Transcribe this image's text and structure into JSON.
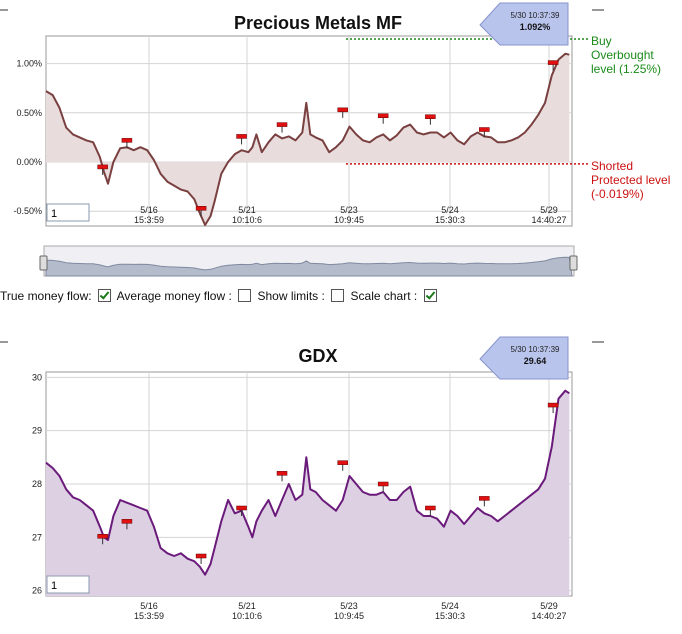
{
  "chart_data": [
    {
      "type": "line",
      "title": "Precious Metals MF",
      "yunit": "percent",
      "ylim": [
        -0.65,
        1.28
      ],
      "yticks": [
        "1.00%",
        "0.50%",
        "0.00%",
        "-0.50%"
      ],
      "ytick_values": [
        1.0,
        0.5,
        0.0,
        -0.5
      ],
      "xticks": [
        {
          "date": "5/16",
          "time": "15:3:59"
        },
        {
          "date": "5/21",
          "time": "10:10:6"
        },
        {
          "date": "5/23",
          "time": "10:9:45"
        },
        {
          "date": "5/24",
          "time": "15:30:3"
        },
        {
          "date": "5/29",
          "time": "14:40:27"
        }
      ],
      "series": [
        {
          "color": "#7a4040",
          "fill": "#e8dcdc",
          "points": [
            [
              0,
              0.72
            ],
            [
              0.5,
              0.68
            ],
            [
              1,
              0.55
            ],
            [
              1.5,
              0.35
            ],
            [
              2,
              0.28
            ],
            [
              2.5,
              0.25
            ],
            [
              3,
              0.22
            ],
            [
              3.5,
              0.2
            ],
            [
              4,
              0.05
            ],
            [
              4.3,
              -0.1
            ],
            [
              4.6,
              -0.22
            ],
            [
              5,
              0.0
            ],
            [
              5.5,
              0.14
            ],
            [
              6,
              0.15
            ],
            [
              6.5,
              0.12
            ],
            [
              7,
              0.15
            ],
            [
              7.5,
              0.12
            ],
            [
              8,
              0.02
            ],
            [
              8.5,
              -0.12
            ],
            [
              9,
              -0.2
            ],
            [
              9.5,
              -0.24
            ],
            [
              10,
              -0.28
            ],
            [
              10.5,
              -0.3
            ],
            [
              11,
              -0.38
            ],
            [
              11.4,
              -0.52
            ],
            [
              11.8,
              -0.64
            ],
            [
              12.2,
              -0.55
            ],
            [
              12.5,
              -0.4
            ],
            [
              13,
              -0.12
            ],
            [
              13.5,
              0.0
            ],
            [
              14,
              0.08
            ],
            [
              14.5,
              0.12
            ],
            [
              15,
              0.1
            ],
            [
              15.3,
              0.15
            ],
            [
              15.6,
              0.28
            ],
            [
              16,
              0.1
            ],
            [
              16.5,
              0.2
            ],
            [
              17,
              0.28
            ],
            [
              17.5,
              0.24
            ],
            [
              18,
              0.26
            ],
            [
              18.5,
              0.22
            ],
            [
              19,
              0.3
            ],
            [
              19.3,
              0.6
            ],
            [
              19.6,
              0.28
            ],
            [
              20,
              0.25
            ],
            [
              20.5,
              0.22
            ],
            [
              21,
              0.1
            ],
            [
              21.5,
              0.15
            ],
            [
              22,
              0.22
            ],
            [
              22.5,
              0.36
            ],
            [
              23,
              0.28
            ],
            [
              23.5,
              0.22
            ],
            [
              24,
              0.2
            ],
            [
              24.5,
              0.25
            ],
            [
              25,
              0.28
            ],
            [
              25.5,
              0.22
            ],
            [
              26,
              0.27
            ],
            [
              26.5,
              0.35
            ],
            [
              27,
              0.38
            ],
            [
              27.5,
              0.3
            ],
            [
              28,
              0.28
            ],
            [
              28.5,
              0.3
            ],
            [
              29,
              0.3
            ],
            [
              29.5,
              0.25
            ],
            [
              30,
              0.3
            ],
            [
              30.5,
              0.22
            ],
            [
              31,
              0.18
            ],
            [
              31.5,
              0.26
            ],
            [
              32,
              0.3
            ],
            [
              32.5,
              0.26
            ],
            [
              33,
              0.25
            ],
            [
              33.5,
              0.2
            ],
            [
              34,
              0.2
            ],
            [
              34.5,
              0.22
            ],
            [
              35,
              0.25
            ],
            [
              35.5,
              0.3
            ],
            [
              36,
              0.38
            ],
            [
              36.5,
              0.48
            ],
            [
              37,
              0.6
            ],
            [
              37.5,
              0.88
            ],
            [
              38,
              1.04
            ],
            [
              38.5,
              1.1
            ],
            [
              38.8,
              1.09
            ]
          ]
        }
      ],
      "markers": [
        [
          4.2,
          -0.05
        ],
        [
          6,
          0.22
        ],
        [
          11.5,
          -0.47
        ],
        [
          14.5,
          0.26
        ],
        [
          17.5,
          0.38
        ],
        [
          22,
          0.53
        ],
        [
          25,
          0.47
        ],
        [
          28.5,
          0.46
        ],
        [
          32.5,
          0.33
        ],
        [
          37.6,
          1.01
        ]
      ],
      "current": {
        "date_time": "5/30 10:37:39",
        "value": "1.092%"
      },
      "levels": [
        {
          "label": "Buy Overbought level (1.25%)",
          "value": 1.25,
          "color": "#1a8a1a"
        },
        {
          "label": "Shorted Protected level (-0.019%)",
          "value": -0.019,
          "color": "#cc1111"
        }
      ],
      "input_value": "1"
    },
    {
      "type": "line",
      "title": "GDX",
      "ylim": [
        25.9,
        30.1
      ],
      "yticks": [
        "30",
        "29",
        "28",
        "27",
        "26"
      ],
      "ytick_values": [
        30,
        29,
        28,
        27,
        26
      ],
      "xticks": [
        {
          "date": "5/16",
          "time": "15:3:59"
        },
        {
          "date": "5/21",
          "time": "10:10:6"
        },
        {
          "date": "5/23",
          "time": "10:9:45"
        },
        {
          "date": "5/24",
          "time": "15:30:3"
        },
        {
          "date": "5/29",
          "time": "14:40:27"
        }
      ],
      "series": [
        {
          "color": "#6a1a7a",
          "fill": "#ddd0e3",
          "points": [
            [
              0,
              28.4
            ],
            [
              0.5,
              28.3
            ],
            [
              1,
              28.15
            ],
            [
              1.5,
              27.9
            ],
            [
              2,
              27.75
            ],
            [
              2.5,
              27.7
            ],
            [
              3,
              27.6
            ],
            [
              3.5,
              27.5
            ],
            [
              4,
              27.2
            ],
            [
              4.3,
              27.0
            ],
            [
              4.6,
              26.95
            ],
            [
              5,
              27.4
            ],
            [
              5.5,
              27.7
            ],
            [
              6,
              27.65
            ],
            [
              6.5,
              27.6
            ],
            [
              7,
              27.55
            ],
            [
              7.5,
              27.5
            ],
            [
              8,
              27.2
            ],
            [
              8.5,
              26.8
            ],
            [
              9,
              26.7
            ],
            [
              9.5,
              26.65
            ],
            [
              10,
              26.7
            ],
            [
              10.5,
              26.6
            ],
            [
              11,
              26.55
            ],
            [
              11.4,
              26.45
            ],
            [
              11.8,
              26.3
            ],
            [
              12.2,
              26.5
            ],
            [
              12.5,
              26.8
            ],
            [
              13,
              27.3
            ],
            [
              13.5,
              27.7
            ],
            [
              14,
              27.45
            ],
            [
              14.5,
              27.5
            ],
            [
              15,
              27.2
            ],
            [
              15.3,
              27.0
            ],
            [
              15.6,
              27.3
            ],
            [
              16,
              27.5
            ],
            [
              16.5,
              27.7
            ],
            [
              17,
              27.4
            ],
            [
              17.5,
              27.7
            ],
            [
              18,
              28.0
            ],
            [
              18.5,
              27.7
            ],
            [
              19,
              27.8
            ],
            [
              19.3,
              28.5
            ],
            [
              19.6,
              27.9
            ],
            [
              20,
              27.85
            ],
            [
              20.5,
              27.7
            ],
            [
              21,
              27.6
            ],
            [
              21.5,
              27.5
            ],
            [
              22,
              27.7
            ],
            [
              22.5,
              28.15
            ],
            [
              23,
              28.0
            ],
            [
              23.5,
              27.85
            ],
            [
              24,
              27.8
            ],
            [
              24.5,
              27.8
            ],
            [
              25,
              27.85
            ],
            [
              25.5,
              27.7
            ],
            [
              26,
              27.7
            ],
            [
              26.5,
              27.85
            ],
            [
              27,
              27.95
            ],
            [
              27.5,
              27.5
            ],
            [
              28,
              27.4
            ],
            [
              28.5,
              27.4
            ],
            [
              29,
              27.35
            ],
            [
              29.5,
              27.2
            ],
            [
              30,
              27.5
            ],
            [
              30.5,
              27.4
            ],
            [
              31,
              27.25
            ],
            [
              31.5,
              27.4
            ],
            [
              32,
              27.55
            ],
            [
              32.5,
              27.45
            ],
            [
              33,
              27.4
            ],
            [
              33.5,
              27.3
            ],
            [
              34,
              27.4
            ],
            [
              34.5,
              27.5
            ],
            [
              35,
              27.6
            ],
            [
              35.5,
              27.7
            ],
            [
              36,
              27.8
            ],
            [
              36.5,
              27.9
            ],
            [
              37,
              28.1
            ],
            [
              37.5,
              28.7
            ],
            [
              38,
              29.6
            ],
            [
              38.5,
              29.75
            ],
            [
              38.8,
              29.7
            ]
          ]
        }
      ],
      "markers": [
        [
          4.2,
          27.02
        ],
        [
          6,
          27.3
        ],
        [
          11.5,
          26.65
        ],
        [
          14.5,
          27.55
        ],
        [
          17.5,
          28.2
        ],
        [
          22,
          28.4
        ],
        [
          25,
          28.0
        ],
        [
          28.5,
          27.55
        ],
        [
          32.5,
          27.73
        ],
        [
          37.6,
          29.48
        ]
      ],
      "current": {
        "date_time": "5/30 10:37:39",
        "value": "29.64"
      },
      "input_value": "1"
    }
  ],
  "controls": {
    "true_money_flow": {
      "label": "True money flow:",
      "checked": true
    },
    "average_money_flow": {
      "label": "Average money flow :",
      "checked": false
    },
    "show_limits": {
      "label": "Show limits :",
      "checked": false
    },
    "scale_chart": {
      "label": "Scale chart :",
      "checked": true
    }
  }
}
